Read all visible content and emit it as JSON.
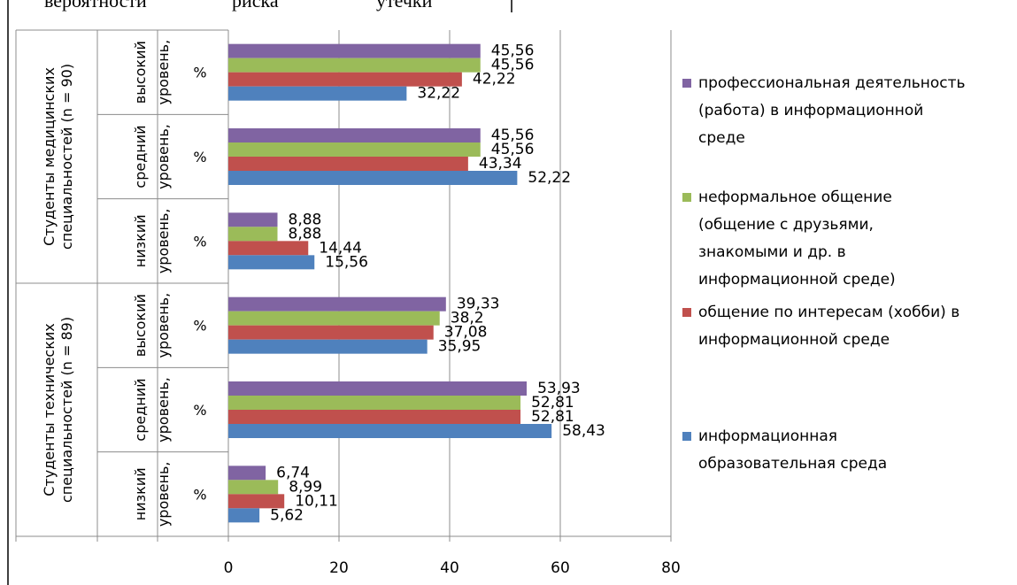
{
  "header_fragments": [
    "вероятности",
    "риска",
    "утечки"
  ],
  "chart_data": {
    "type": "bar",
    "orientation": "horizontal",
    "xlim": [
      0,
      80
    ],
    "xticks": [
      "0",
      "20",
      "40",
      "60",
      "80"
    ],
    "grid": true,
    "legend_position": "right",
    "groups": [
      {
        "label": "Студенты медицинских специальностей (n = 90)",
        "levels": [
          {
            "level": "высокий уровень,",
            "unit": "%",
            "values": [
              32.22,
              42.22,
              45.56,
              45.56
            ],
            "labels": [
              "32,22",
              "42,22",
              "45,56",
              "45,56"
            ]
          },
          {
            "level": "средний уровень,",
            "unit": "%",
            "values": [
              52.22,
              43.34,
              45.56,
              45.56
            ],
            "labels": [
              "52,22",
              "43,34",
              "45,56",
              "45,56"
            ]
          },
          {
            "level": "низкий уровень,",
            "unit": "%",
            "values": [
              15.56,
              14.44,
              8.88,
              8.88
            ],
            "labels": [
              "15,56",
              "14,44",
              "8,88",
              "8,88"
            ]
          }
        ]
      },
      {
        "label": "Студенты технических специальностей (n = 89)",
        "levels": [
          {
            "level": "высокий уровень,",
            "unit": "%",
            "values": [
              35.95,
              37.08,
              38.2,
              39.33
            ],
            "labels": [
              "35,95",
              "37,08",
              "38,2",
              "39,33"
            ]
          },
          {
            "level": "средний уровень,",
            "unit": "%",
            "values": [
              58.43,
              52.81,
              52.81,
              53.93
            ],
            "labels": [
              "58,43",
              "52,81",
              "52,81",
              "53,93"
            ]
          },
          {
            "level": "низкий уровень,",
            "unit": "%",
            "values": [
              5.62,
              10.11,
              8.99,
              6.74
            ],
            "labels": [
              "5,62",
              "10,11",
              "8,99",
              "6,74"
            ]
          }
        ]
      }
    ],
    "series": [
      {
        "name": "информационная образовательная среда",
        "color": "#4f81bd"
      },
      {
        "name": "общение по интересам (хобби) в информационной среде",
        "color": "#c0504d"
      },
      {
        "name": "неформальное общение (общение с друзьями, знакомыми и др. в информационной среде)",
        "color": "#9bbb59"
      },
      {
        "name": "профессиональная деятельность (работа) в информационной среде",
        "color": "#8064a2"
      }
    ],
    "legend": [
      {
        "series": 3,
        "lines": [
          "профессиональная деятельность",
          "(работа) в информационной",
          "среде"
        ]
      },
      {
        "series": 2,
        "lines": [
          " неформальное общение",
          "(общение с друзьями,",
          "знакомыми и др. в",
          "информационной среде)"
        ]
      },
      {
        "series": 1,
        "lines": [
          " общение по интересам (хобби) в",
          "информационной среде"
        ]
      },
      {
        "series": 0,
        "lines": [
          "информационная",
          "образовательная среда"
        ]
      }
    ]
  }
}
